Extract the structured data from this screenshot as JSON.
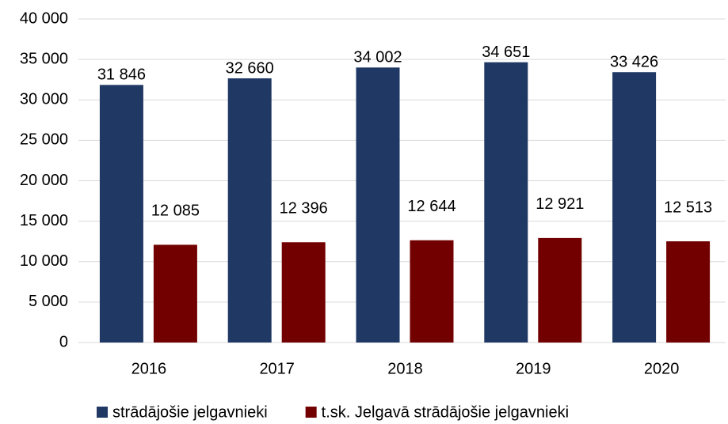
{
  "chart_data": {
    "type": "bar",
    "categories": [
      "2016",
      "2017",
      "2018",
      "2019",
      "2020"
    ],
    "series": [
      {
        "name": "strādājošie jelgavnieki",
        "color": "#1f3864",
        "values": [
          31846,
          32660,
          34002,
          34651,
          33426
        ],
        "value_labels": [
          "31 846",
          "32 660",
          "34 002",
          "34 651",
          "33 426"
        ]
      },
      {
        "name": "t.sk. Jelgavā strādājošie jelgavnieki",
        "color": "#720000",
        "values": [
          12085,
          12396,
          12644,
          12921,
          12513
        ],
        "value_labels": [
          "12 085",
          "12 396",
          "12 644",
          "12 921",
          "12 513"
        ]
      }
    ],
    "ylim": [
      0,
      40000
    ],
    "yticks": [
      0,
      {
        "value": 5000,
        "label": "5 000"
      },
      {
        "value": 10000,
        "label": "10 000"
      },
      {
        "value": 15000,
        "label": "15 000"
      },
      {
        "value": 20000,
        "label": "20 000"
      },
      {
        "value": 25000,
        "label": "25 000"
      },
      {
        "value": 30000,
        "label": "30 000"
      },
      {
        "value": 35000,
        "label": "35 000"
      },
      {
        "value": 40000,
        "label": "40 000"
      }
    ],
    "grid": true,
    "legend": "bottom"
  }
}
